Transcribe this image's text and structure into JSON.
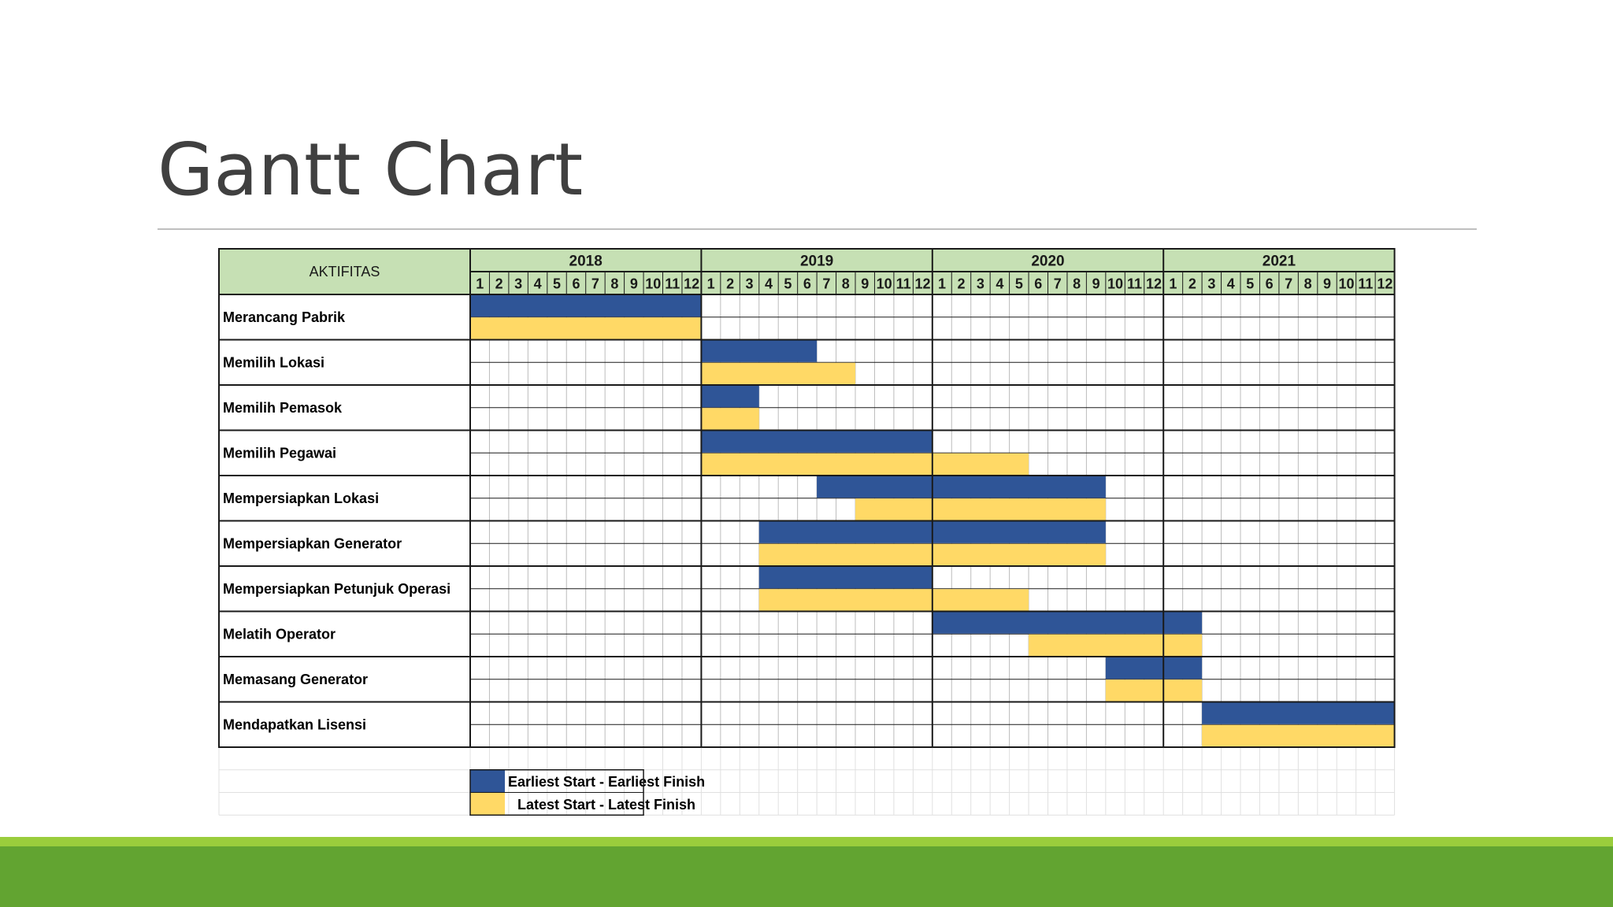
{
  "slide": {
    "title": "Gantt Chart"
  },
  "colors": {
    "header_fill": "#c6e0b4",
    "earliest": "#2f5597",
    "latest": "#ffd966",
    "band_light": "#9acd3c",
    "band_dark": "#62a431"
  },
  "chart_data": {
    "type": "gantt",
    "activity_header": "AKTIFITAS",
    "years": [
      "2018",
      "2019",
      "2020",
      "2021"
    ],
    "months": [
      "1",
      "2",
      "3",
      "4",
      "5",
      "6",
      "7",
      "8",
      "9",
      "10",
      "11",
      "12"
    ],
    "series": [
      {
        "name": "Earliest Start - Earliest Finish",
        "color": "#2f5597"
      },
      {
        "name": "Latest Start - Latest Finish",
        "color": "#ffd966"
      }
    ],
    "tasks": [
      {
        "name": "Merancang Pabrik",
        "earliest": [
          "2018-01",
          "2018-12"
        ],
        "latest": [
          "2018-01",
          "2018-12"
        ]
      },
      {
        "name": "Memilih Lokasi",
        "earliest": [
          "2019-01",
          "2019-06"
        ],
        "latest": [
          "2019-01",
          "2019-08"
        ]
      },
      {
        "name": "Memilih Pemasok",
        "earliest": [
          "2019-01",
          "2019-03"
        ],
        "latest": [
          "2019-01",
          "2019-03"
        ]
      },
      {
        "name": "Memilih Pegawai",
        "earliest": [
          "2019-01",
          "2019-12"
        ],
        "latest": [
          "2019-01",
          "2020-05"
        ]
      },
      {
        "name": "Mempersiapkan Lokasi",
        "earliest": [
          "2019-07",
          "2020-09"
        ],
        "latest": [
          "2019-09",
          "2020-09"
        ]
      },
      {
        "name": "Mempersiapkan Generator",
        "earliest": [
          "2019-04",
          "2020-09"
        ],
        "latest": [
          "2019-04",
          "2020-09"
        ]
      },
      {
        "name": "Mempersiapkan Petunjuk Operasi",
        "earliest": [
          "2019-04",
          "2019-12"
        ],
        "latest": [
          "2019-04",
          "2020-05"
        ]
      },
      {
        "name": "Melatih Operator",
        "earliest": [
          "2020-01",
          "2021-02"
        ],
        "latest": [
          "2020-06",
          "2021-02"
        ]
      },
      {
        "name": "Memasang Generator",
        "earliest": [
          "2020-10",
          "2021-02"
        ],
        "latest": [
          "2020-10",
          "2021-02"
        ]
      },
      {
        "name": "Mendapatkan Lisensi",
        "earliest": [
          "2021-03",
          "2021-12"
        ],
        "latest": [
          "2021-03",
          "2021-12"
        ]
      }
    ]
  }
}
